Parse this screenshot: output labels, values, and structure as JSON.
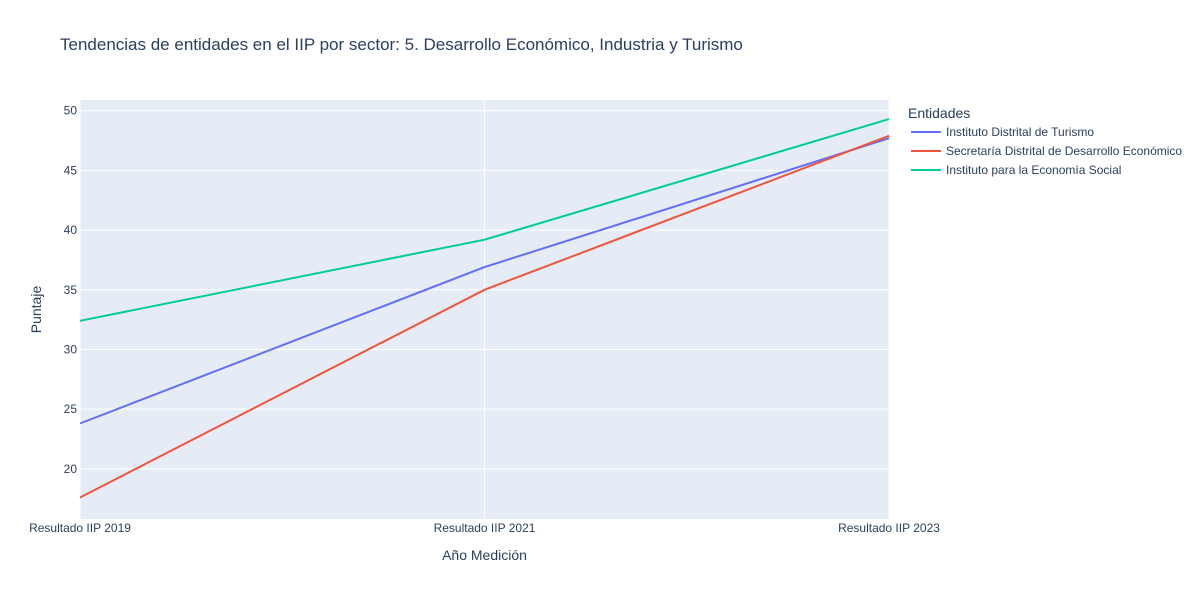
{
  "chart_data": {
    "type": "line",
    "title": "Tendencias de entidades en el IIP por sector: 5. Desarrollo Económico, Industria y Turismo",
    "xlabel": "Año Medición",
    "ylabel": "Puntaje",
    "categories": [
      "Resultado IIP 2019",
      "Resultado IIP 2021",
      "Resultado IIP 2023"
    ],
    "ylim": [
      15.8,
      50.9
    ],
    "yticks": [
      20,
      25,
      30,
      35,
      40,
      45,
      50
    ],
    "grid": true,
    "legend": {
      "title": "Entidades",
      "placement": "right"
    },
    "series": [
      {
        "name": "Instituto Distrital de Turismo",
        "values": [
          23.8,
          36.9,
          47.7
        ],
        "color": "#636efa"
      },
      {
        "name": "Secretaría Distrital de Desarrollo Económico",
        "values": [
          17.6,
          35.0,
          47.9
        ],
        "color": "#ef553b"
      },
      {
        "name": "Instituto para la Economía Social",
        "values": [
          32.4,
          39.2,
          49.3
        ],
        "color": "#00cc96"
      }
    ]
  }
}
